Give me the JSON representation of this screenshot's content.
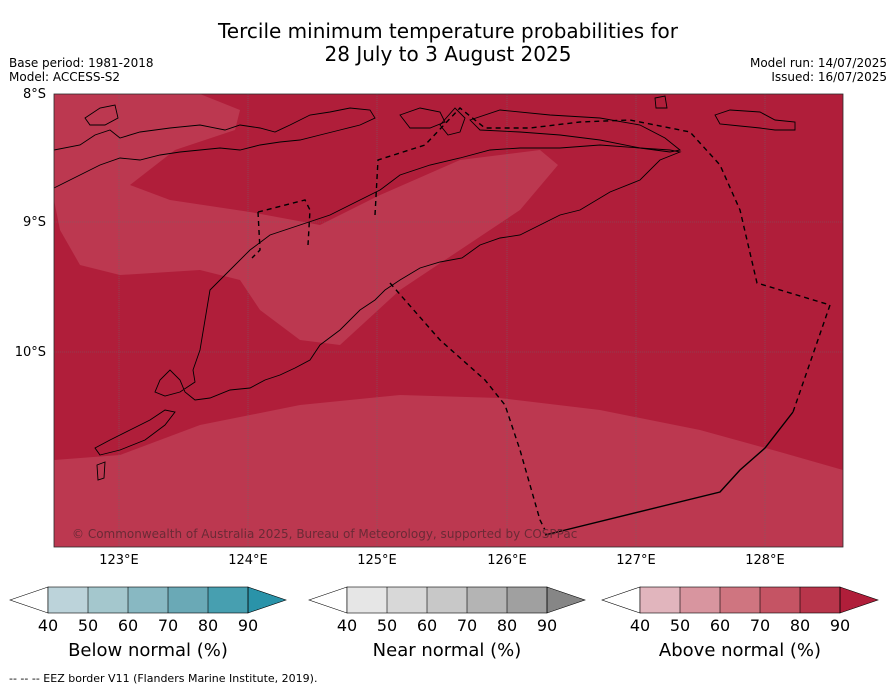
{
  "header": {
    "title_line1": "Tercile minimum temperature probabilities for",
    "title_line2": "28 July to 3 August 2025",
    "base_period": "Base period: 1981-2018",
    "model": "Model: ACCESS-S2",
    "model_run": "Model run: 14/07/2025",
    "issued": "Issued: 16/07/2025"
  },
  "map": {
    "latitude_labels": [
      "8°S",
      "9°S",
      "10°S"
    ],
    "longitude_labels": [
      "123°E",
      "124°E",
      "125°E",
      "126°E",
      "127°E",
      "128°E"
    ],
    "copyright": "© Commonwealth of Australia 2025, Bureau of Meteorology, supported by COSPPac",
    "colors": {
      "prob_80_90": "#b01e3a",
      "prob_70_80": "#bc3850",
      "prob_60_70": "#c96273",
      "land_outline": "#000000"
    }
  },
  "colorbars": [
    {
      "title": "Below normal (%)",
      "ticks": [
        "40",
        "50",
        "60",
        "70",
        "80",
        "90"
      ],
      "colors": [
        "#ffffff",
        "#bcd3da",
        "#a4c7cd",
        "#88b8c2",
        "#6aa9b6",
        "#479fb0",
        "#2a93a9"
      ]
    },
    {
      "title": "Near normal (%)",
      "ticks": [
        "40",
        "50",
        "60",
        "70",
        "80",
        "90"
      ],
      "colors": [
        "#ffffff",
        "#e6e6e6",
        "#d8d8d8",
        "#c8c8c8",
        "#b4b4b4",
        "#a0a0a0",
        "#868686"
      ]
    },
    {
      "title": "Above normal (%)",
      "ticks": [
        "40",
        "50",
        "60",
        "70",
        "80",
        "90"
      ],
      "colors": [
        "#ffffff",
        "#e1b5bd",
        "#d8959f",
        "#cf7580",
        "#c55464",
        "#b8354b",
        "#b01e3a"
      ]
    }
  ],
  "footnote": "--  --  -- EEZ border V11 (Flanders Marine Institute, 2019)."
}
